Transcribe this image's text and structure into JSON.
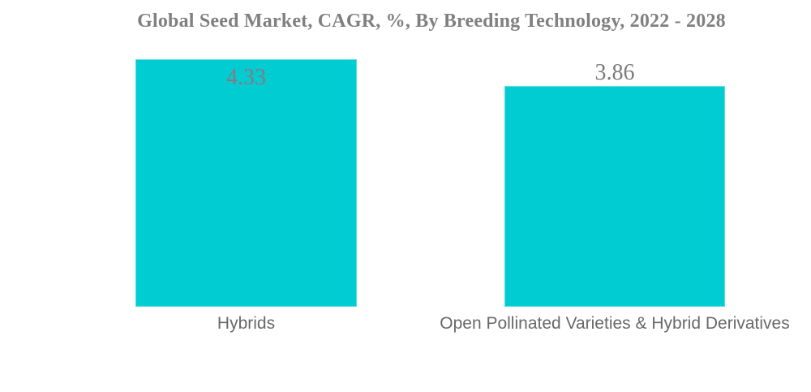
{
  "page": {
    "background": "#ffffff"
  },
  "chart_data": {
    "type": "bar",
    "title": "Global Seed Market, CAGR, %, By Breeding Technology, 2022 - 2028",
    "categories": [
      "Hybrids",
      "Open Pollinated Varieties & Hybrid Derivatives"
    ],
    "values": [
      4.33,
      3.86
    ],
    "value_labels": [
      "4.33",
      "3.86"
    ],
    "xlabel": "",
    "ylabel": "",
    "ylim": [
      0,
      4.33
    ],
    "grid": false,
    "legend": "none",
    "axes_visible": false,
    "bar_color": "#00CCD2",
    "title_color": "#808080",
    "value_label_colors": [
      "#8B797D",
      "#7B7B7B"
    ],
    "category_label_color": "#696969"
  }
}
